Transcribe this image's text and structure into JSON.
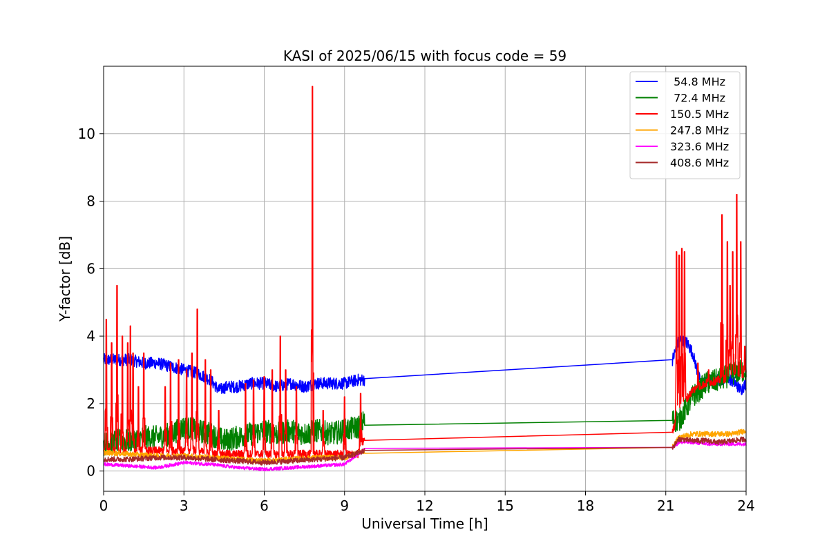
{
  "chart_data": {
    "type": "line",
    "title": "KASI of 2025/06/15 with focus code = 59",
    "xlabel": "Universal Time [h]",
    "ylabel": "Y-factor [dB]",
    "xlim": [
      0,
      24
    ],
    "ylim": [
      -0.6,
      12
    ],
    "xticks": [
      0,
      3,
      6,
      9,
      12,
      15,
      18,
      21,
      24
    ],
    "yticks": [
      0,
      2,
      4,
      6,
      8,
      10
    ],
    "grid": true,
    "legend_position": "top-right",
    "series": [
      {
        "name": " 54.8 MHz",
        "color": "#0000ff",
        "x": [
          0,
          0.5,
          1,
          1.5,
          2,
          2.5,
          3,
          3.5,
          4,
          4.3,
          4.6,
          5,
          5.5,
          6,
          6.5,
          7,
          7.5,
          8,
          8.5,
          9,
          9.5,
          9.75,
          21.25,
          21.5,
          21.8,
          22.0,
          22.3,
          22.7,
          23,
          23.3,
          23.6,
          23.8,
          24
        ],
        "y": [
          3.3,
          3.3,
          3.3,
          3.2,
          3.2,
          3.1,
          3.0,
          2.9,
          2.7,
          2.4,
          2.5,
          2.5,
          2.6,
          2.6,
          2.5,
          2.6,
          2.5,
          2.6,
          2.6,
          2.6,
          2.7,
          2.7,
          3.3,
          3.9,
          3.8,
          3.5,
          2.6,
          2.7,
          2.7,
          2.8,
          2.6,
          2.4,
          2.6
        ],
        "noise": 0.18
      },
      {
        "name": " 72.4 MHz",
        "color": "#008000",
        "x": [
          0,
          0.5,
          1,
          1.5,
          2,
          2.5,
          3,
          3.5,
          4,
          4.5,
          5,
          5.5,
          6,
          6.5,
          7,
          7.5,
          8,
          8.5,
          9,
          9.5,
          9.75,
          21.25,
          21.5,
          22.0,
          22.5,
          23,
          23.5,
          24
        ],
        "y": [
          0.8,
          0.9,
          0.9,
          1.0,
          1.0,
          1.1,
          1.3,
          1.2,
          1.1,
          0.9,
          1.0,
          1.1,
          1.2,
          1.1,
          1.2,
          1.1,
          1.2,
          1.1,
          1.2,
          1.3,
          1.5,
          1.5,
          1.5,
          2.2,
          2.6,
          2.7,
          2.9,
          3.0
        ],
        "noise": 0.35
      },
      {
        "name": "150.5 MHz",
        "color": "#ff0000",
        "x": [
          0,
          0.5,
          1,
          1.5,
          2,
          2.5,
          3,
          3.5,
          4,
          4.5,
          5,
          5.5,
          6,
          6.5,
          7,
          7.5,
          8,
          8.5,
          9,
          9.5,
          9.75,
          21.25,
          21.5,
          22.0,
          22.5,
          23,
          23.5,
          24
        ],
        "y": [
          0.6,
          0.6,
          0.6,
          0.6,
          0.6,
          0.6,
          0.6,
          0.6,
          0.5,
          0.5,
          0.5,
          0.5,
          0.5,
          0.5,
          0.5,
          0.5,
          0.5,
          0.5,
          0.5,
          0.5,
          1.0,
          1.15,
          1.8,
          2.4,
          2.6,
          2.7,
          2.8,
          2.9
        ],
        "noise": 0.12,
        "spikes": [
          [
            0.1,
            4.5
          ],
          [
            0.3,
            3.8
          ],
          [
            0.5,
            5.5
          ],
          [
            0.7,
            4.0
          ],
          [
            0.9,
            3.8
          ],
          [
            1.0,
            4.3
          ],
          [
            1.1,
            3.5
          ],
          [
            1.3,
            2.5
          ],
          [
            1.5,
            3.5
          ],
          [
            2.3,
            2.5
          ],
          [
            2.5,
            3.2
          ],
          [
            2.8,
            3.3
          ],
          [
            3.1,
            3.0
          ],
          [
            3.3,
            3.5
          ],
          [
            3.5,
            4.8
          ],
          [
            3.8,
            3.3
          ],
          [
            4.0,
            3.0
          ],
          [
            4.3,
            1.8
          ],
          [
            5.3,
            2.6
          ],
          [
            5.6,
            2.7
          ],
          [
            6.0,
            2.8
          ],
          [
            6.3,
            3.0
          ],
          [
            6.6,
            4.0
          ],
          [
            6.8,
            3.0
          ],
          [
            7.2,
            2.5
          ],
          [
            7.8,
            11.4
          ],
          [
            8.2,
            1.8
          ],
          [
            9.0,
            2.2
          ],
          [
            9.6,
            2.3
          ],
          [
            21.4,
            6.5
          ],
          [
            21.5,
            6.4
          ],
          [
            21.6,
            6.6
          ],
          [
            21.7,
            6.5
          ],
          [
            22.2,
            3.2
          ],
          [
            22.6,
            3.0
          ],
          [
            23.1,
            7.6
          ],
          [
            23.3,
            6.8
          ],
          [
            23.4,
            5.5
          ],
          [
            23.5,
            6.5
          ],
          [
            23.65,
            8.2
          ],
          [
            23.8,
            6.8
          ],
          [
            23.95,
            3.7
          ]
        ]
      },
      {
        "name": "247.8 MHz",
        "color": "#ffa500",
        "x": [
          0,
          1,
          2,
          3,
          4,
          5,
          6,
          7,
          8,
          9,
          9.75,
          21.25,
          21.5,
          22,
          22.5,
          23,
          23.5,
          24
        ],
        "y": [
          0.55,
          0.5,
          0.45,
          0.45,
          0.4,
          0.35,
          0.3,
          0.35,
          0.4,
          0.4,
          0.6,
          0.7,
          1.0,
          1.1,
          1.1,
          1.1,
          1.1,
          1.2
        ],
        "noise": 0.08
      },
      {
        "name": "323.6 MHz",
        "color": "#ff00ff",
        "x": [
          0,
          1,
          2,
          3,
          4,
          5,
          6,
          7,
          8,
          9,
          9.75,
          21.25,
          21.5,
          22,
          22.5,
          23,
          23.5,
          24
        ],
        "y": [
          0.2,
          0.15,
          0.1,
          0.25,
          0.2,
          0.1,
          0.05,
          0.1,
          0.15,
          0.2,
          0.65,
          0.7,
          0.85,
          0.85,
          0.8,
          0.8,
          0.8,
          0.8
        ],
        "noise": 0.05
      },
      {
        "name": "408.6 MHz",
        "color": "#a52a2a",
        "x": [
          0,
          1,
          2,
          3,
          4,
          5,
          6,
          7,
          8,
          9,
          9.75,
          21.25,
          21.5,
          22,
          22.5,
          23,
          23.5,
          24
        ],
        "y": [
          0.35,
          0.35,
          0.4,
          0.4,
          0.35,
          0.3,
          0.25,
          0.3,
          0.35,
          0.4,
          0.6,
          0.7,
          0.95,
          0.9,
          0.9,
          0.85,
          0.9,
          0.95
        ],
        "noise": 0.08
      }
    ]
  }
}
